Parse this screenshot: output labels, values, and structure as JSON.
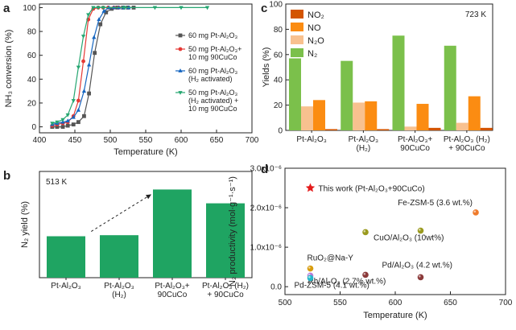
{
  "chart_data": [
    {
      "panel": "a",
      "type": "line",
      "xlabel": "Temperature (K)",
      "ylabel": "NH₃ conversion (%)",
      "xlim": [
        400,
        700
      ],
      "ylim": [
        -5,
        103
      ],
      "xticks": [
        "400",
        "450",
        "500",
        "550",
        "600",
        "650",
        "700"
      ],
      "yticks": [
        "0",
        "20",
        "40",
        "60",
        "80",
        "100"
      ],
      "series": [
        {
          "name": "60 mg Pt-Al₂O₃",
          "label_lines": [
            "60 mg Pt-Al₂O₃"
          ],
          "color": "#555555",
          "marker": "square",
          "x": [
            418,
            425,
            433,
            440,
            448,
            455,
            463,
            470,
            478,
            486,
            494,
            502,
            510,
            518,
            525,
            533
          ],
          "y": [
            0,
            0,
            0,
            1,
            2,
            4,
            9,
            28,
            62,
            86,
            96,
            99,
            100,
            100,
            100,
            100
          ]
        },
        {
          "name": "50 mg Pt-Al₂O₃+ 10 mg 90CuCo",
          "label_lines": [
            "50 mg Pt-Al₂O₃+",
            "10 mg 90CuCo"
          ],
          "color": "#e53935",
          "marker": "circle",
          "x": [
            418,
            425,
            433,
            440,
            448,
            455,
            462,
            469,
            476,
            483,
            490,
            497,
            505,
            512
          ],
          "y": [
            1,
            2,
            3,
            4,
            9,
            22,
            55,
            90,
            99,
            100,
            100,
            100,
            100,
            100
          ]
        },
        {
          "name": "60 mg Pt-Al₂O₃ (H₂ activated)",
          "label_lines": [
            "60 mg Pt-Al₂O₃",
            "(H₂ activated)"
          ],
          "color": "#1565c0",
          "marker": "triangle-up",
          "x": [
            418,
            425,
            433,
            440,
            448,
            455,
            463,
            470,
            477,
            484,
            491,
            498,
            505,
            512,
            519,
            526
          ],
          "y": [
            2,
            3,
            4,
            5,
            8,
            14,
            30,
            52,
            75,
            90,
            97,
            100,
            100,
            100,
            100,
            100
          ]
        },
        {
          "name": "50 mg Pt-Al₂O₃ (H₂ activated) + 10 mg 90CuCo",
          "label_lines": [
            "50 mg Pt-Al₂O₃",
            "(H₂ activated) +",
            "10 mg 90CuCo"
          ],
          "color": "#26a671",
          "marker": "triangle-down",
          "x": [
            418,
            425,
            433,
            440,
            448,
            455,
            462,
            469,
            476,
            483,
            490,
            520,
            563,
            600,
            637
          ],
          "y": [
            3,
            4,
            6,
            10,
            22,
            50,
            76,
            94,
            100,
            100,
            100,
            100,
            100,
            100,
            100
          ]
        }
      ]
    },
    {
      "panel": "b",
      "type": "bar",
      "annotation": "513 K",
      "ylabel": "N₂ yield (%)",
      "ylim": [
        0,
        100
      ],
      "color": "#1fa462",
      "categories": [
        [
          "Pt-Al₂O₃"
        ],
        [
          "Pt-Al₂O₃",
          "(H₂)"
        ],
        [
          "Pt-Al₂O₃+",
          "90CuCo"
        ],
        [
          "Pt-Al₂O₃ (H₂)",
          "+ 90CuCo"
        ]
      ],
      "values": [
        39,
        40,
        83,
        70
      ]
    },
    {
      "panel": "c",
      "type": "bar",
      "annotation": "723 K",
      "ylabel": "Yields (%)",
      "ylim": [
        0,
        100
      ],
      "yticks": [
        "0",
        "20",
        "40",
        "60",
        "80",
        "100"
      ],
      "categories": [
        [
          "Pt-Al₂O₃"
        ],
        [
          "Pt-Al₂O₃",
          "(H₂)"
        ],
        [
          "Pt-Al₂O₃+",
          "90CuCo"
        ],
        [
          "Pt-Al₂O₃ (H₂)",
          "+ 90CuCo"
        ]
      ],
      "series": [
        {
          "name": "N₂",
          "color": "#7bc04b",
          "values": [
            57,
            55,
            75,
            67
          ]
        },
        {
          "name": "N₂O",
          "color": "#f8c18f",
          "values": [
            19,
            22,
            3,
            6
          ]
        },
        {
          "name": "NO",
          "color": "#fb8c12",
          "values": [
            24,
            23,
            21,
            27
          ]
        },
        {
          "name": "NO₂",
          "color": "#d35400",
          "values": [
            1,
            1,
            2,
            2
          ]
        }
      ],
      "legend": [
        "NO₂",
        "NO",
        "N₂O",
        "N₂"
      ],
      "legend_colors": [
        "#d35400",
        "#fb8c12",
        "#f8c18f",
        "#7bc04b"
      ]
    },
    {
      "panel": "d",
      "type": "scatter",
      "xlabel": "Temperature (K)",
      "ylabel": "N₂ productivity (mol·g⁻¹·s⁻¹)",
      "xlim": [
        500,
        700
      ],
      "ylim": [
        -0.2,
        3.0
      ],
      "xticks": [
        "500",
        "550",
        "600",
        "650",
        "700"
      ],
      "yticks": [
        "0.0",
        "1.0x10⁻⁶",
        "2.0x10⁻⁶",
        "3.0x10⁻⁶"
      ],
      "ytick_values": [
        0,
        1,
        2,
        3
      ],
      "points": [
        {
          "label": "This work (Pt-Al₂O₃+90CuCo)",
          "x": 523,
          "y": 2.5,
          "color": "#e41b1b",
          "marker": "star",
          "label_color": "#e41b1b"
        },
        {
          "label": "Fe-ZSM-5 (3.6 wt.%)",
          "x": 673,
          "y": 1.88,
          "color": "#ef7b2c",
          "marker": "circle",
          "label_color": "#ef7b2c"
        },
        {
          "label": "CuO/Al₂O₃ (10wt%)",
          "x": 573,
          "y": 1.38,
          "color": "#9a9a1e",
          "marker": "circle",
          "label_color": "#8a8a12"
        },
        {
          "label": "",
          "x": 623,
          "y": 1.42,
          "color": "#9a9a1e",
          "marker": "circle"
        },
        {
          "label": "RuO₂@Na-Y",
          "x": 523,
          "y": 0.46,
          "color": "#d89c0d",
          "marker": "circle",
          "label_color": "#c98a00"
        },
        {
          "label": "Pd/Al₂O₃ (4.2 wt.%)",
          "x": 623,
          "y": 0.24,
          "color": "#8b3a3a",
          "marker": "circle",
          "label_color": "#8b3a3a"
        },
        {
          "label": "",
          "x": 573,
          "y": 0.3,
          "color": "#8b3a3a",
          "marker": "circle"
        },
        {
          "label": "Rh/Al₂O₃ (2.7% wt.%)",
          "x": 523,
          "y": 0.28,
          "color": "#b57ad8",
          "marker": "circle",
          "label_color": "#b57ad8"
        },
        {
          "label": "Pd-ZSM-5 (4.1 wt.%)",
          "x": 523,
          "y": 0.22,
          "color": "#22b8c9",
          "marker": "circle",
          "label_color": "#1aa9ba"
        }
      ]
    }
  ]
}
